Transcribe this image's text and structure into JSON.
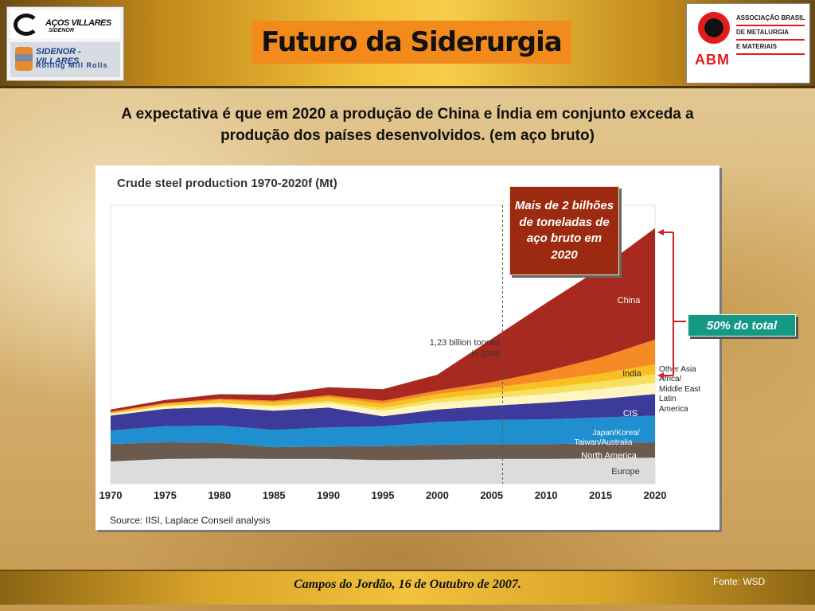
{
  "header": {
    "title": "Futuro da Siderurgia",
    "logo_left_top": "AÇOS VILLARES",
    "logo_left_top_sub": "SIDENOR",
    "logo_left_bottom": "SIDENOR - VILLARES",
    "logo_left_bottom_sub": "Rolling Mill Rolls",
    "logo_right_abbr": "ABM",
    "logo_right_lines": [
      "ASSOCIAÇÃO BRASILEIRA",
      "DE METALURGIA",
      "E MATERIAIS"
    ]
  },
  "headline": {
    "line1": "A expectativa é que em 2020 a produção de China e Índia em conjunto exceda a",
    "line2": "produção dos países desenvolvidos. (em aço bruto)"
  },
  "callouts": {
    "two_billion": "Mais de 2 bilhões de toneladas de aço bruto em 2020",
    "half_total": "50% do total"
  },
  "footer": {
    "text": "Campos do Jordão, 16 de Outubro de 2007.",
    "source": "Fonte: WSD"
  },
  "colors": {
    "europe": "#dcdcdc",
    "north_america": "#6b5a4e",
    "japan_korea_taiwan_australia": "#1f8fd0",
    "cis": "#3c3a9a",
    "latin_america": "#fff5c0",
    "middle_east": "#f7e060",
    "other_asia_africa": "#f8c020",
    "india": "#f68a24",
    "china": "#a8291f",
    "callout_red": "#9c2a10",
    "callout_teal": "#149a84"
  },
  "chart_data": {
    "type": "area",
    "title": "Crude steel production 1970-2020f (Mt)",
    "source": "Source: IISI, Laplace Conseil analysis",
    "x": [
      1970,
      1975,
      1980,
      1985,
      1990,
      1995,
      2000,
      2005,
      2010,
      2015,
      2020
    ],
    "x_ticks": [
      "1970",
      "1975",
      "1980",
      "1985",
      "1990",
      "1995",
      "2000",
      "2005",
      "2010",
      "2015",
      "2020"
    ],
    "xlim": [
      1970,
      2020
    ],
    "ylim": [
      0,
      2250
    ],
    "stacking": "stacked",
    "series": [
      {
        "name": "Europe",
        "values": [
          180,
          200,
          205,
          200,
          200,
          190,
          195,
          200,
          200,
          205,
          210
        ]
      },
      {
        "name": "North America",
        "values": [
          140,
          135,
          125,
          95,
          100,
          115,
          120,
          120,
          120,
          120,
          125
        ]
      },
      {
        "name": "Japan/Korea/Taiwan/Australia",
        "values": [
          110,
          130,
          140,
          140,
          155,
          160,
          185,
          195,
          200,
          210,
          215
        ]
      },
      {
        "name": "CIS",
        "values": [
          120,
          140,
          150,
          155,
          160,
          80,
          100,
          115,
          135,
          150,
          175
        ]
      },
      {
        "name": "Latin America",
        "values": [
          14,
          20,
          28,
          32,
          38,
          45,
          55,
          60,
          70,
          80,
          90
        ]
      },
      {
        "name": "Middle East",
        "values": [
          2,
          4,
          8,
          12,
          16,
          22,
          30,
          40,
          50,
          60,
          70
        ]
      },
      {
        "name": "Other Asia Africa",
        "values": [
          10,
          15,
          20,
          25,
          30,
          35,
          40,
          45,
          55,
          65,
          80
        ]
      },
      {
        "name": "India",
        "values": [
          6,
          8,
          10,
          12,
          15,
          22,
          27,
          45,
          80,
          130,
          200
        ]
      },
      {
        "name": "China",
        "values": [
          18,
          25,
          37,
          47,
          66,
          95,
          129,
          350,
          550,
          720,
          900
        ]
      }
    ],
    "annotations": [
      {
        "text": "1,23 billion tonnes",
        "x": 2006
      },
      {
        "text": "in 2006",
        "x": 2006
      }
    ],
    "reference_line_x": 2006
  }
}
